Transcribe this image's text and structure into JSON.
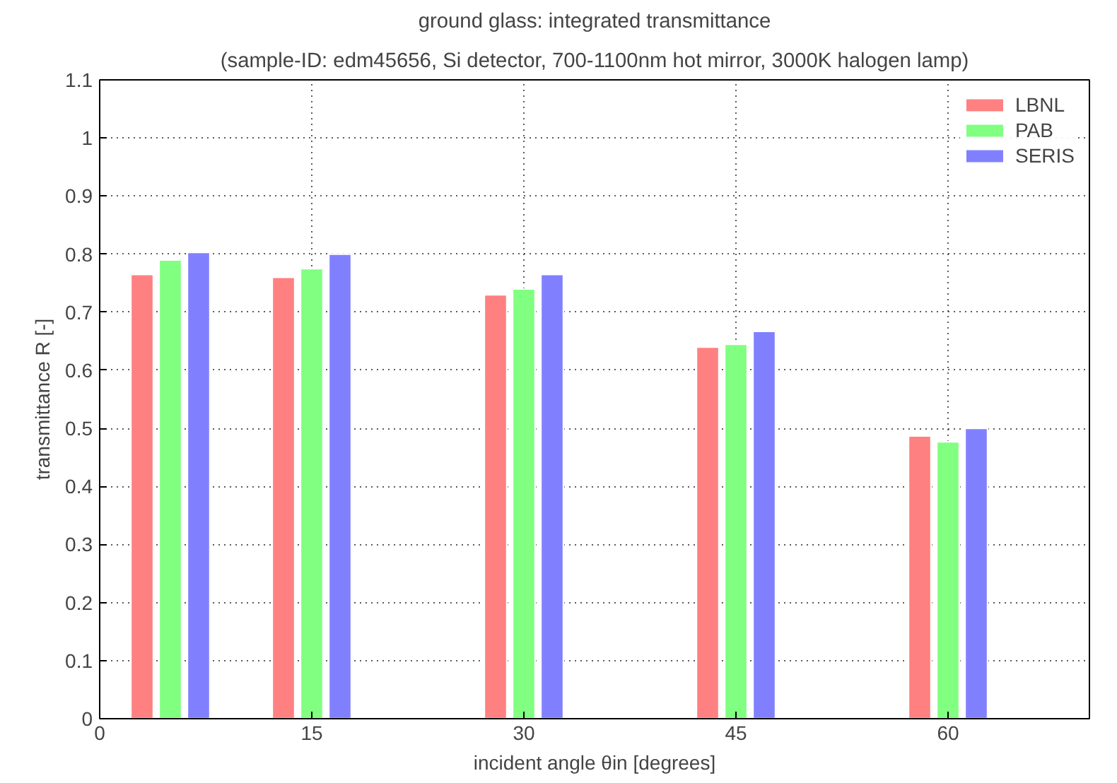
{
  "chart_data": {
    "type": "bar",
    "title": "ground glass: integrated transmittance",
    "subtitle": "(sample-ID: edm45656, Si detector, 700-1100nm hot mirror, 3000K halogen lamp)",
    "xlabel": "incident angle θin [degrees]",
    "ylabel": "transmittance R [-]",
    "series": [
      {
        "name": "LBNL",
        "color": "#ff8080",
        "x": [
          3,
          13,
          28,
          43,
          58
        ],
        "values": [
          0.765,
          0.76,
          0.73,
          0.64,
          0.487
        ]
      },
      {
        "name": "PAB",
        "color": "#80ff80",
        "x": [
          5,
          15,
          30,
          45,
          60
        ],
        "values": [
          0.79,
          0.775,
          0.74,
          0.645,
          0.477
        ]
      },
      {
        "name": "SERIS",
        "color": "#8080ff",
        "x": [
          7,
          17,
          32,
          47,
          62
        ],
        "values": [
          0.803,
          0.8,
          0.765,
          0.667,
          0.5
        ]
      }
    ],
    "xlim": [
      0,
      70
    ],
    "xticks": [
      0,
      15,
      30,
      45,
      60
    ],
    "ylim": [
      0,
      1.1
    ],
    "yticks": [
      0,
      0.1,
      0.2,
      0.3,
      0.4,
      0.5,
      0.6,
      0.7,
      0.8,
      0.9,
      1,
      1.1
    ],
    "grid": true,
    "legend": "top right"
  }
}
